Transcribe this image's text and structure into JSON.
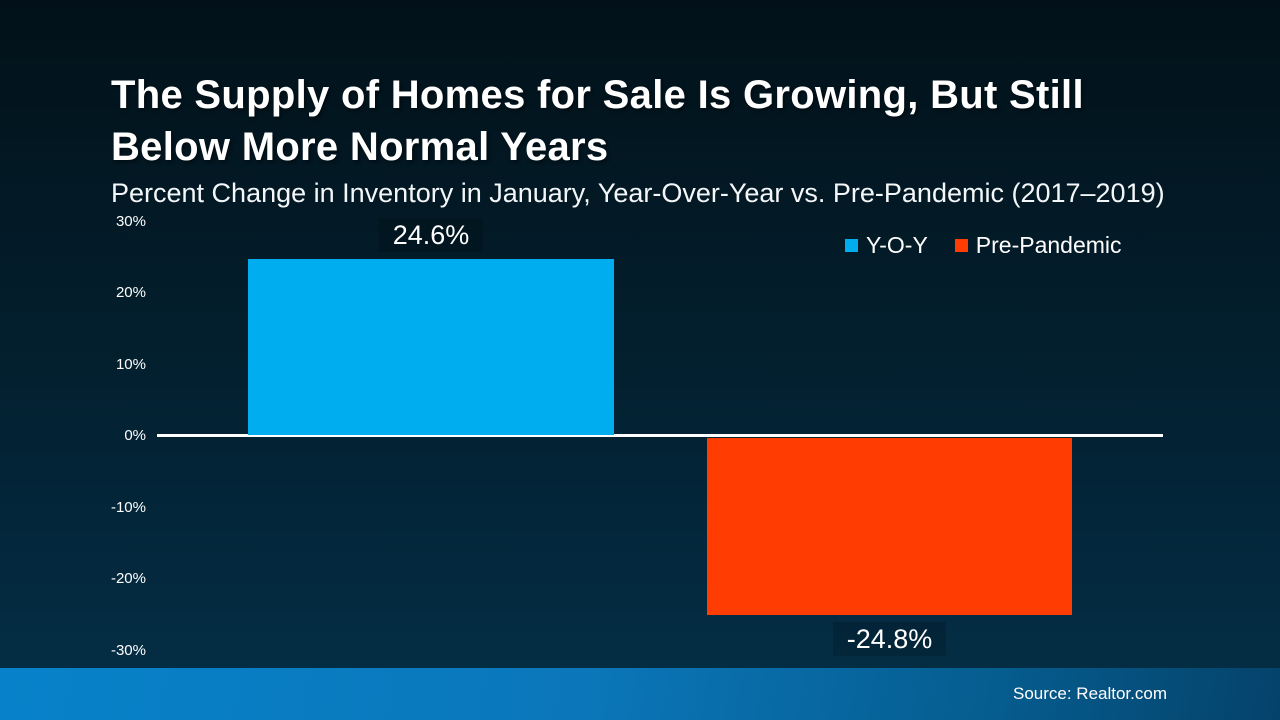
{
  "slide": {
    "title": "The Supply of Homes for Sale Is Growing, But Still Below More Normal Years",
    "subtitle": "Percent Change in Inventory in January, Year-Over-Year vs. Pre-Pandemic (2017–2019)",
    "source": "Source: Realtor.com"
  },
  "colors": {
    "background_top": "#021119",
    "background_bottom": "#053048",
    "title_text": "#FFFFFF",
    "axis_line": "#FFFFFF",
    "yoy_blue": "#00AEEF",
    "pre_pandemic_orange": "#FF3D02",
    "footer_gradient_left": "#0782CA",
    "footer_gradient_right": "#05426A"
  },
  "chart_data": {
    "type": "bar",
    "title": "The Supply of Homes for Sale Is Growing, But Still Below More Normal Years",
    "subtitle": "Percent Change in Inventory in January, Year-Over-Year vs. Pre-Pandemic (2017–2019)",
    "categories": [
      "Y-O-Y",
      "Pre-Pandemic"
    ],
    "series": [
      {
        "name": "Y-O-Y",
        "value": 24.6,
        "label": "24.6%",
        "color": "#00AEEF"
      },
      {
        "name": "Pre-Pandemic",
        "value": -24.8,
        "label": "-24.8%",
        "color": "#FF3D02"
      }
    ],
    "ylim": [
      -30,
      30
    ],
    "ytick_interval": 10,
    "yticks": [
      {
        "value": 30,
        "label": "30%"
      },
      {
        "value": 20,
        "label": "20%"
      },
      {
        "value": 10,
        "label": "10%"
      },
      {
        "value": 0,
        "label": "0%"
      },
      {
        "value": -10,
        "label": "-10%"
      },
      {
        "value": -20,
        "label": "-20%"
      },
      {
        "value": -30,
        "label": "-30%"
      }
    ],
    "legend": {
      "position": "top-right",
      "items": [
        {
          "label": "Y-O-Y",
          "color": "#00AEEF"
        },
        {
          "label": "Pre-Pandemic",
          "color": "#FF3D02"
        }
      ]
    },
    "grid": false,
    "zero_baseline": true,
    "source": "Source: Realtor.com"
  }
}
